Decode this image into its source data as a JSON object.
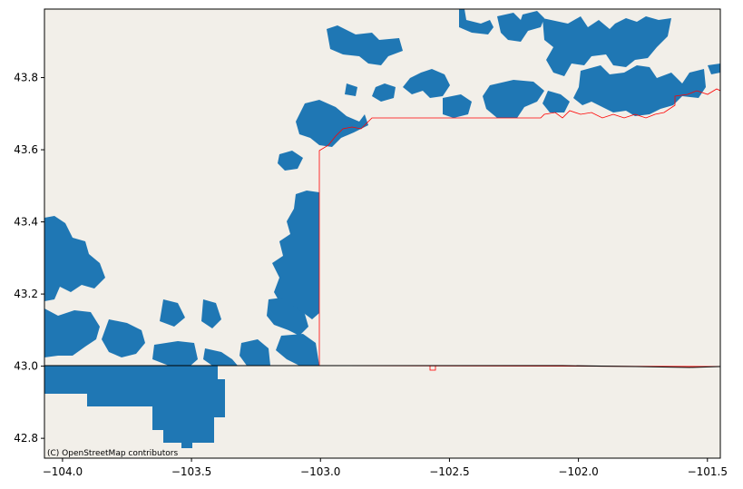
{
  "map": {
    "attribution": "(C) OpenStreetMap contributors",
    "x_ticks": [
      "−104.0",
      "−103.5",
      "−103.0",
      "−102.5",
      "−102.0",
      "−101.5"
    ],
    "y_ticks": [
      "42.8",
      "43.0",
      "43.2",
      "43.4",
      "43.6",
      "43.8"
    ],
    "x_tick_values": [
      -104.0,
      -103.5,
      -103.0,
      -102.5,
      -102.0,
      -101.5
    ],
    "y_tick_values": [
      42.8,
      43.0,
      43.2,
      43.4,
      43.6,
      43.8
    ],
    "extent": {
      "lon_min": -104.07,
      "lon_max": -101.45,
      "lat_min": 42.745,
      "lat_max": 43.99
    },
    "colors": {
      "land_background": "#f2efe9",
      "fill": "#1f77b4",
      "boundary": "#ff0000",
      "state_line": "#000000"
    }
  }
}
